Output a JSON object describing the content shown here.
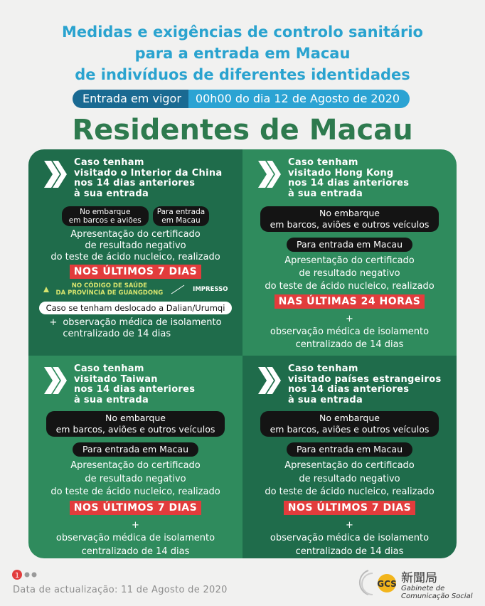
{
  "header": {
    "title_lines": [
      "Medidas e exigências de controlo sanitário",
      "para a entrada em Macau",
      "de indivíduos de diferentes identidades"
    ],
    "effective_label": "Entrada em vigor",
    "effective_date": "00h00 do dia 12 de Agosto de 2020"
  },
  "main_title": "Residentes de Macau",
  "quadrants": [
    {
      "heading": [
        "Caso tenham",
        "visitado o Interior da China",
        "nos 14 dias anteriores",
        "à sua entrada"
      ],
      "tags": [
        [
          "No embarque",
          "em barcos e aviões"
        ],
        [
          "Para entrada",
          "em Macau"
        ]
      ],
      "certificate": [
        "Apresentação do certificado",
        "de resultado negativo",
        "do teste de ácido nucleico, realizado"
      ],
      "highlight": "NOS ÚLTIMOS 7 DIAS",
      "code": [
        "NO CÓDIGO DE SAÚDE",
        "DA PROVÍNCIA DE GUANGDONG"
      ],
      "code_alternative": "IMPRESSO",
      "note": "Caso se tenham deslocado a Dalian/Urumqi",
      "plus": "+",
      "observation": [
        "observação médica de isolamento",
        "centralizado de 14 dias"
      ]
    },
    {
      "heading": [
        "Caso tenham",
        "visitado Hong Kong",
        "nos 14 dias anteriores",
        "à sua entrada"
      ],
      "tags": [
        [
          "No embarque",
          "em barcos, aviões e outros veículos"
        ],
        [
          "Para entrada em Macau"
        ]
      ],
      "certificate": [
        "Apresentação do certificado",
        "de resultado negativo",
        "do teste de ácido nucleico, realizado"
      ],
      "highlight": "NAS ÚLTIMAS 24 HORAS",
      "plus": "+",
      "observation": [
        "observação médica de isolamento",
        "centralizado de 14 dias"
      ]
    },
    {
      "heading": [
        "Caso tenham",
        "visitado Taiwan",
        "nos 14 dias anteriores",
        "à sua entrada"
      ],
      "tags": [
        [
          "No embarque",
          "em barcos, aviões e outros veículos"
        ],
        [
          "Para entrada em Macau"
        ]
      ],
      "certificate": [
        "Apresentação do certificado",
        "de resultado negativo",
        "do teste de ácido nucleico, realizado"
      ],
      "highlight": "NOS ÚLTIMOS 7 DIAS",
      "plus": "+",
      "observation": [
        "observação médica de isolamento",
        "centralizado de 14 dias"
      ]
    },
    {
      "heading": [
        "Caso tenham",
        "visitado países estrangeiros",
        "nos 14 dias anteriores",
        "à sua entrada"
      ],
      "tags": [
        [
          "No embarque",
          "em barcos, aviões e outros veículos"
        ],
        [
          "Para entrada em Macau"
        ]
      ],
      "certificate": [
        "Apresentação do certificado",
        "de resultado negativo",
        "do teste de ácido nucleico, realizado"
      ],
      "highlight": "NOS ÚLTIMOS 7 DIAS",
      "plus": "+",
      "observation": [
        "observação médica de isolamento",
        "centralizado de 14 dias"
      ]
    }
  ],
  "footer": {
    "updated": "Data de actualização: 11 de Agosto de 2020",
    "logo_chinese": "新聞局",
    "logo_lines": [
      "Gabinete de",
      "Comunicação Social"
    ]
  }
}
